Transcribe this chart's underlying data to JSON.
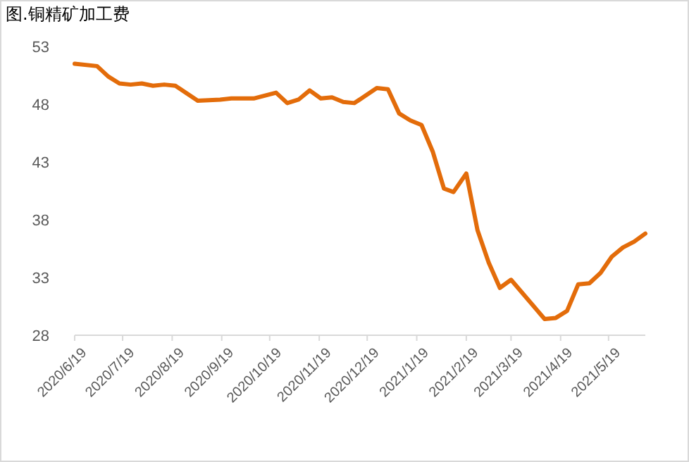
{
  "chart_data": {
    "type": "line",
    "title": "图.铜精矿加工费",
    "x": [
      "2020-06-19",
      "2020-07-03",
      "2020-07-10",
      "2020-07-17",
      "2020-07-24",
      "2020-07-31",
      "2020-08-07",
      "2020-08-14",
      "2020-08-21",
      "2020-09-04",
      "2020-09-18",
      "2020-09-25",
      "2020-10-09",
      "2020-10-23",
      "2020-10-30",
      "2020-11-06",
      "2020-11-13",
      "2020-11-20",
      "2020-11-27",
      "2020-12-04",
      "2020-12-11",
      "2020-12-25",
      "2021-01-01",
      "2021-01-08",
      "2021-01-15",
      "2021-01-22",
      "2021-01-29",
      "2021-02-05",
      "2021-02-11",
      "2021-02-19",
      "2021-02-26",
      "2021-03-05",
      "2021-03-12",
      "2021-03-19",
      "2021-04-09",
      "2021-04-16",
      "2021-04-23",
      "2021-04-30",
      "2021-05-07",
      "2021-05-14",
      "2021-05-21",
      "2021-05-28",
      "2021-06-04",
      "2021-06-11"
    ],
    "series": [
      {
        "color": "#e36c0a",
        "values": [
          51.5,
          51.3,
          50.4,
          49.8,
          49.7,
          49.8,
          49.6,
          49.7,
          49.6,
          48.3,
          48.4,
          48.5,
          48.5,
          49.0,
          48.1,
          48.4,
          49.2,
          48.5,
          48.6,
          48.2,
          48.1,
          49.4,
          49.3,
          47.2,
          46.6,
          46.2,
          43.9,
          40.7,
          40.4,
          42.0,
          37.1,
          34.3,
          32.1,
          32.8,
          29.4,
          29.5,
          30.1,
          32.4,
          32.5,
          33.4,
          34.8,
          35.6,
          36.1,
          36.8
        ]
      }
    ],
    "xlim": [
      "2020-06-19",
      "2021-06-11"
    ],
    "xticks": [
      {
        "value": "2020-06-19",
        "label": "2020/6/19"
      },
      {
        "value": "2020-07-19",
        "label": "2020/7/19"
      },
      {
        "value": "2020-08-19",
        "label": "2020/8/19"
      },
      {
        "value": "2020-09-19",
        "label": "2020/9/19"
      },
      {
        "value": "2020-10-19",
        "label": "2020/10/19"
      },
      {
        "value": "2020-11-19",
        "label": "2020/11/19"
      },
      {
        "value": "2020-12-19",
        "label": "2020/12/19"
      },
      {
        "value": "2021-01-19",
        "label": "2021/1/19"
      },
      {
        "value": "2021-02-19",
        "label": "2021/2/19"
      },
      {
        "value": "2021-03-19",
        "label": "2021/3/19"
      },
      {
        "value": "2021-04-19",
        "label": "2021/4/19"
      },
      {
        "value": "2021-05-19",
        "label": "2021/5/19"
      }
    ],
    "ylim": [
      28,
      53
    ],
    "yticks": [
      28,
      33,
      38,
      43,
      48,
      53
    ],
    "marker": "none",
    "line_style": "solid"
  }
}
